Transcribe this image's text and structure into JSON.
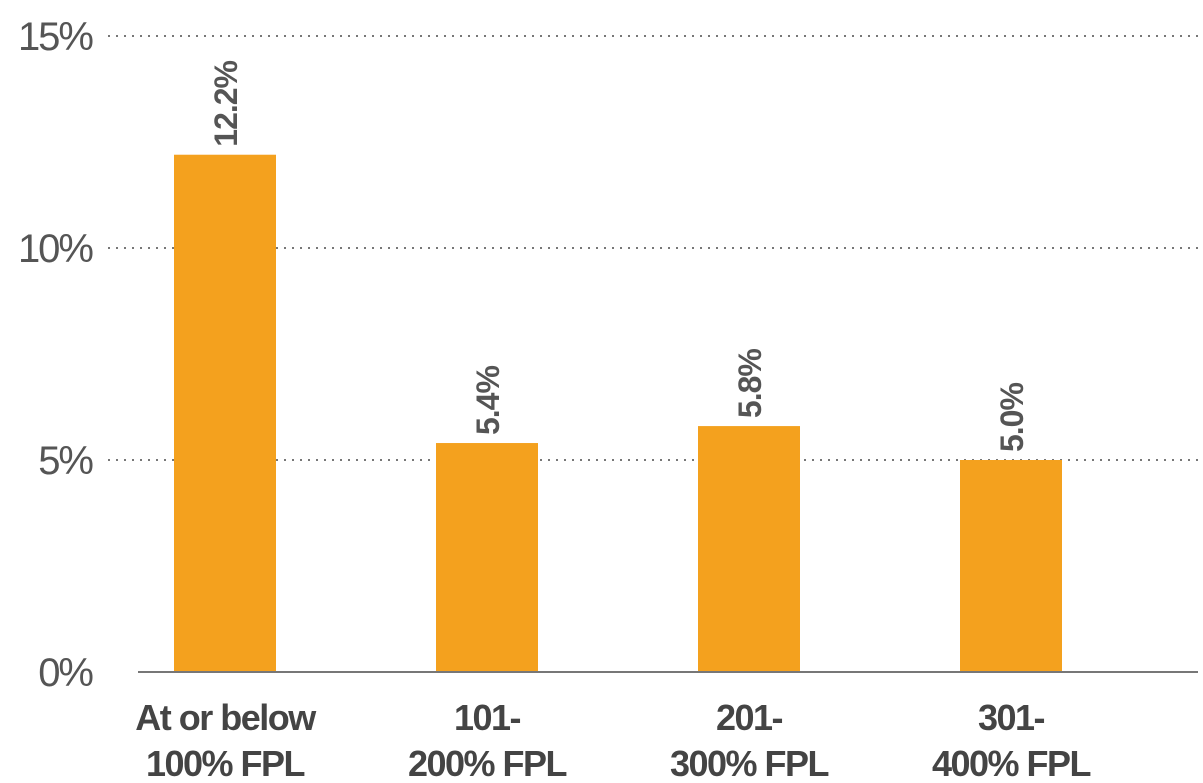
{
  "chart_data": {
    "type": "bar",
    "categories": [
      [
        "At or below",
        "100% FPL"
      ],
      [
        "101-",
        "200% FPL"
      ],
      [
        "201-",
        "300% FPL"
      ],
      [
        "301-",
        "400% FPL"
      ]
    ],
    "values": [
      12.2,
      5.4,
      5.8,
      5.0
    ],
    "value_labels": [
      "12.2%",
      "5.4%",
      "5.8%",
      "5.0%"
    ],
    "ylim": [
      0,
      15
    ],
    "yticks": [
      0,
      5,
      10,
      15
    ],
    "ytick_labels": [
      "0%",
      "5%",
      "10%",
      "15%"
    ],
    "grid": true,
    "bar_color": "#F4A11E",
    "grid_color": "#777777",
    "title": "",
    "xlabel": "",
    "ylabel": ""
  }
}
